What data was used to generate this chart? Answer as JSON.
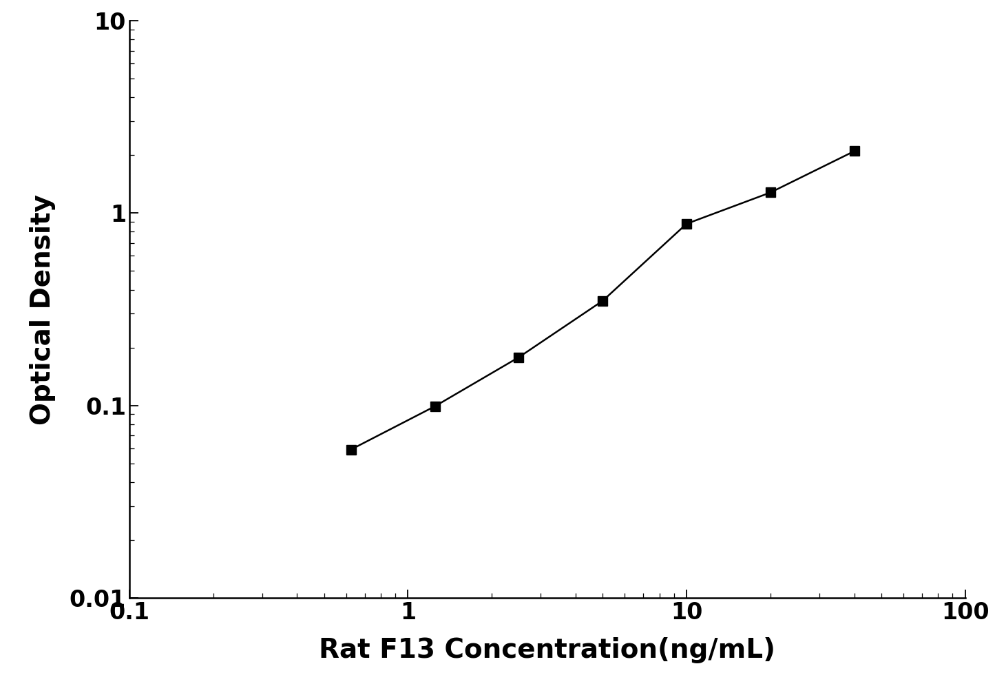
{
  "x": [
    0.625,
    1.25,
    2.5,
    5.0,
    10.0,
    20.0,
    40.0
  ],
  "y": [
    0.059,
    0.099,
    0.178,
    0.35,
    0.88,
    1.28,
    2.1
  ],
  "xlabel": "Rat F13 Concentration(ng/mL)",
  "ylabel": "Optical Density",
  "xlim": [
    0.1,
    100
  ],
  "ylim": [
    0.01,
    10
  ],
  "line_color": "#000000",
  "marker": "s",
  "marker_color": "#000000",
  "marker_size": 10,
  "linewidth": 1.8,
  "xlabel_fontsize": 28,
  "ylabel_fontsize": 28,
  "tick_fontsize": 24,
  "tick_label_fontweight": "bold",
  "axis_label_fontweight": "bold",
  "background_color": "#ffffff",
  "figure_background_color": "#ffffff",
  "x_tick_labels": [
    "0.1",
    "1",
    "10",
    "100"
  ],
  "x_tick_values": [
    0.1,
    1,
    10,
    100
  ],
  "y_tick_labels": [
    "0.01",
    "0.1",
    "1",
    "10"
  ],
  "y_tick_values": [
    0.01,
    0.1,
    1,
    10
  ]
}
